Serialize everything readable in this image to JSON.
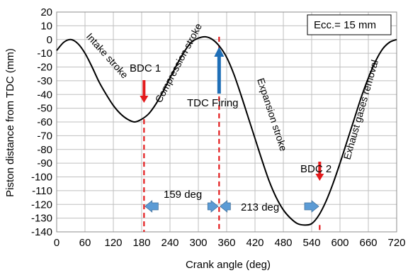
{
  "chart_data": {
    "type": "line",
    "xlabel": "Crank angle  (deg)",
    "ylabel": "Piston distance from TDC  (mm)",
    "xlim": [
      0,
      720
    ],
    "ylim": [
      -140,
      20
    ],
    "x_ticks": [
      0,
      60,
      120,
      180,
      240,
      300,
      360,
      420,
      480,
      540,
      600,
      660,
      720
    ],
    "y_ticks": [
      20,
      10,
      0,
      -10,
      -20,
      -30,
      -40,
      -50,
      -60,
      -70,
      -80,
      -90,
      -100,
      -110,
      -120,
      -130,
      -140
    ],
    "grid": true,
    "legend_text": "Ecc.= 15 mm",
    "series": [
      {
        "x": [
          0,
          15,
          30,
          45,
          60,
          75,
          90,
          105,
          120,
          135,
          150,
          165,
          180,
          195,
          210,
          225,
          240,
          255,
          270,
          285,
          300,
          315,
          330,
          345,
          360,
          375,
          390,
          405,
          420,
          435,
          450,
          465,
          480,
          495,
          510,
          525,
          540,
          555,
          570,
          585,
          600,
          615,
          630,
          645,
          660,
          675,
          690,
          705,
          720
        ],
        "values": [
          -8,
          -2,
          0,
          -3,
          -10,
          -20,
          -31,
          -40,
          -48,
          -54,
          -58,
          -60,
          -58,
          -54,
          -47,
          -38,
          -28,
          -18,
          -9,
          -2,
          1,
          2,
          0,
          -5,
          -13,
          -25,
          -40,
          -56,
          -72,
          -88,
          -103,
          -115,
          -124,
          -130,
          -134,
          -135,
          -134,
          -128,
          -118,
          -105,
          -90,
          -74,
          -58,
          -42,
          -28,
          -16,
          -7,
          -2,
          0
        ]
      }
    ],
    "annotations": [
      {
        "text": "Intake stroke"
      },
      {
        "text": "Compression stroke"
      },
      {
        "text": "Expansion stroke"
      },
      {
        "text": "Exhaust gases removal"
      },
      {
        "text": "BDC 1",
        "x": 180
      },
      {
        "text": "BDC 2",
        "x": 560
      },
      {
        "text": "TDC Firing",
        "x": 340
      },
      {
        "text": "159 deg"
      },
      {
        "text": "213 deg"
      }
    ],
    "markers": [
      {
        "name": "BDC 1",
        "x": 185
      },
      {
        "name": "TDC Firing",
        "x": 344
      },
      {
        "name": "BDC 2",
        "x": 557
      }
    ],
    "colors": {
      "curve": "#000000",
      "marker_line": "#e31a1c",
      "red_arrow": "#e31a1c",
      "blue_arrow": "#1f6fb7",
      "span_arrow": "#5b9bd5",
      "grid": "#bfbfbf"
    }
  }
}
